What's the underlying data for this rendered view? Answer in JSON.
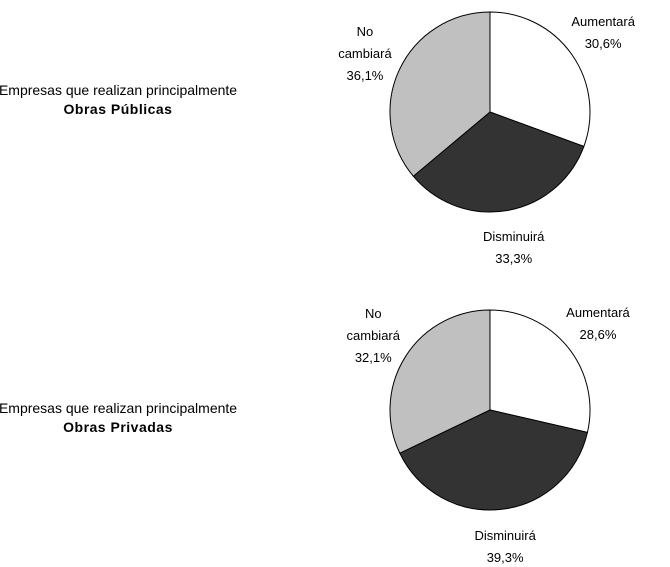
{
  "chart_data": [
    {
      "type": "pie",
      "title": "Empresas que realizan principalmente",
      "subtitle": "Obras Públicas",
      "categories": [
        "Aumentará",
        "Disminuirá",
        "No cambiará"
      ],
      "values": [
        30.6,
        33.3,
        36.1
      ],
      "value_labels": [
        "30,6%",
        "33,3%",
        "36,1%"
      ],
      "colors": [
        "#ffffff",
        "#333333",
        "#c0c0c0"
      ]
    },
    {
      "type": "pie",
      "title": "Empresas que realizan principalmente",
      "subtitle": "Obras Privadas",
      "categories": [
        "Aumentará",
        "Disminuirá",
        "No cambiará"
      ],
      "values": [
        28.6,
        39.3,
        32.1
      ],
      "value_labels": [
        "28,6%",
        "39,3%",
        "32,1%"
      ],
      "colors": [
        "#ffffff",
        "#333333",
        "#c0c0c0"
      ]
    }
  ]
}
